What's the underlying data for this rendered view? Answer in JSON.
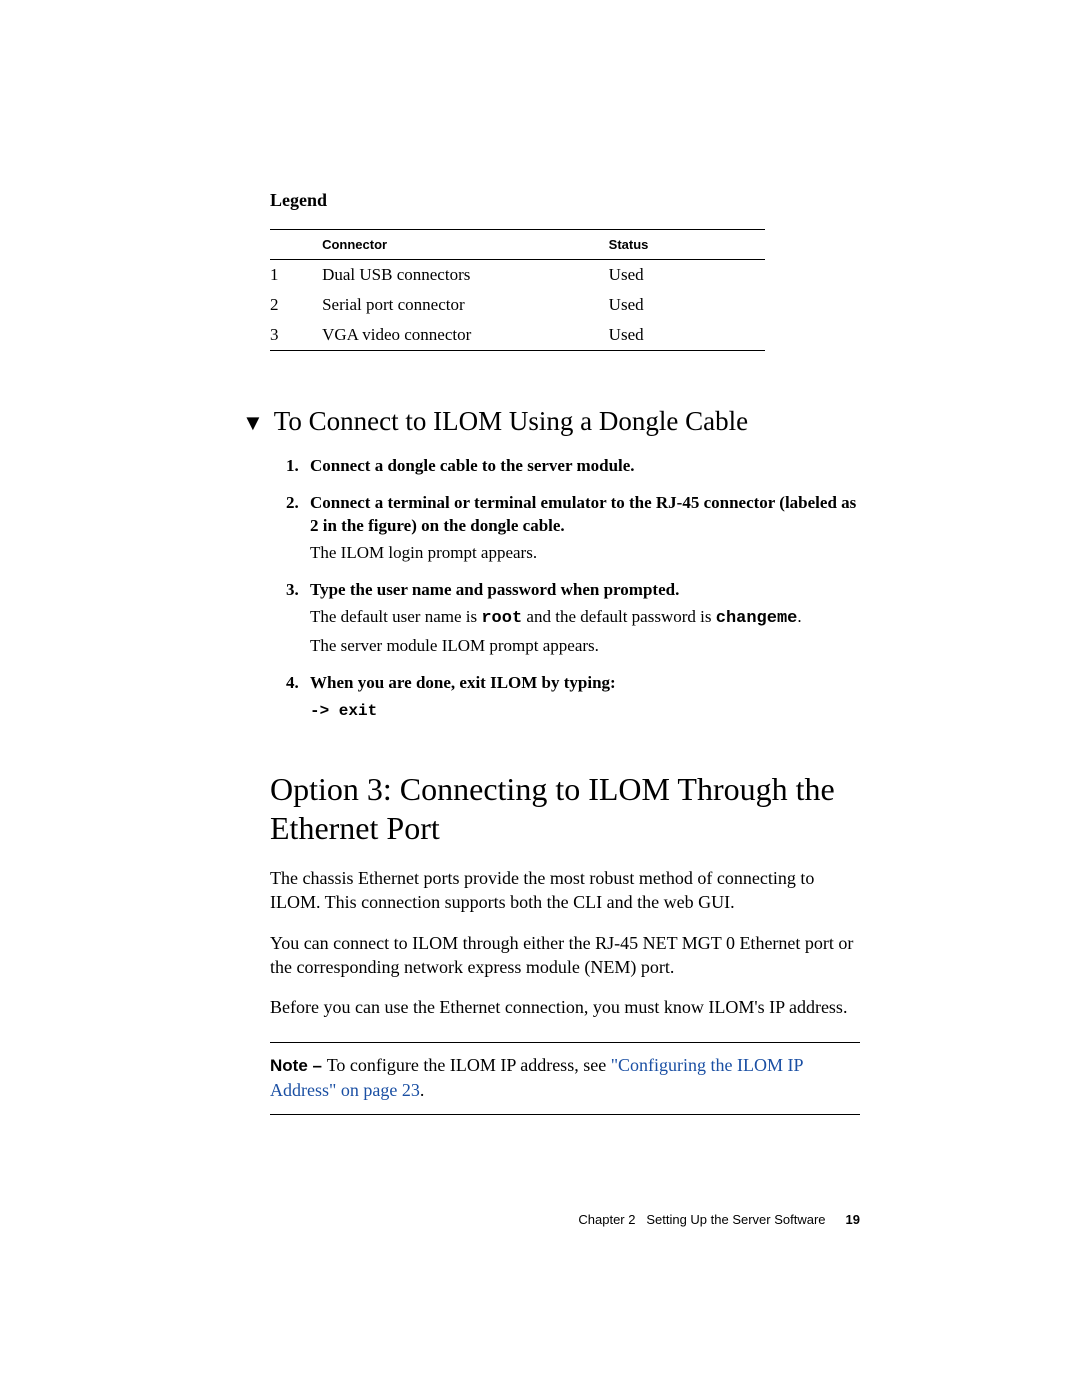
{
  "legend": {
    "title": "Legend",
    "headers": {
      "connector": "Connector",
      "status": "Status"
    },
    "rows": [
      {
        "num": "1",
        "connector": "Dual USB connectors",
        "status": "Used"
      },
      {
        "num": "2",
        "connector": "Serial port connector",
        "status": "Used"
      },
      {
        "num": "3",
        "connector": "VGA video connector",
        "status": "Used"
      }
    ]
  },
  "procedure": {
    "marker": "▼",
    "title": "To Connect to ILOM Using a Dongle Cable",
    "steps": {
      "s1": "Connect a dongle cable to the server module.",
      "s2": "Connect a terminal or terminal emulator to the RJ-45 connector (labeled as 2 in the figure) on the dongle cable.",
      "s2_after": "The ILOM login prompt appears.",
      "s3": "Type the user name and password when prompted.",
      "s3_line1_a": "The default user name is ",
      "s3_line1_code1": "root",
      "s3_line1_b": " and the default password is ",
      "s3_line1_code2": "changeme",
      "s3_line1_c": ".",
      "s3_line2": "The server module ILOM prompt appears.",
      "s4": "When you are done, exit ILOM by typing:",
      "s4_code": "-> exit"
    }
  },
  "section": {
    "heading": "Option 3: Connecting to ILOM Through the Ethernet Port",
    "p1": "The chassis Ethernet ports provide the most robust method of connecting to ILOM. This connection supports both the CLI and the web GUI.",
    "p2": "You can connect to ILOM through either the RJ-45 NET MGT 0 Ethernet port or the corresponding network express module (NEM) port.",
    "p3": "Before you can use the Ethernet connection, you must know ILOM's IP address."
  },
  "note": {
    "label": "Note – ",
    "text_a": "To configure the ILOM IP address, see ",
    "link1": "\"Configuring the ILOM IP Address\" on page 23",
    "text_b": "."
  },
  "footer": {
    "chapter": "Chapter 2",
    "title": "Setting Up the Server Software",
    "page": "19"
  },
  "colors": {
    "text": "#000000",
    "link": "#1a4fa3",
    "background": "#ffffff",
    "rule": "#000000"
  }
}
